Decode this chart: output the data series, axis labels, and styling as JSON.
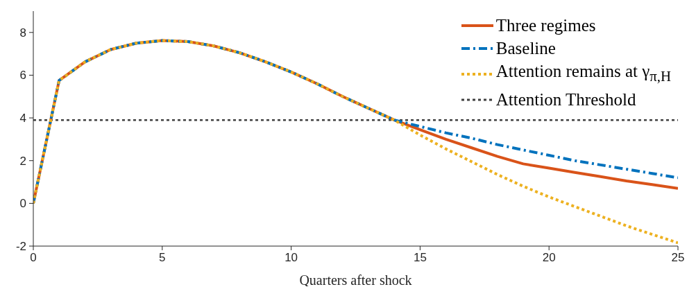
{
  "chart_data": {
    "type": "line",
    "xlabel": "Quarters after shock",
    "x": [
      0,
      1,
      2,
      3,
      4,
      5,
      6,
      7,
      8,
      9,
      10,
      11,
      12,
      13,
      14,
      15,
      16,
      17,
      18,
      19,
      20,
      21,
      22,
      23,
      24,
      25
    ],
    "series": [
      {
        "name": "Three regimes",
        "color": "#d95319",
        "line_style": "solid",
        "values": [
          0,
          5.75,
          6.62,
          7.2,
          7.5,
          7.62,
          7.57,
          7.37,
          7.05,
          6.63,
          6.15,
          5.6,
          5.0,
          4.45,
          3.9,
          3.45,
          3.0,
          2.6,
          2.2,
          1.85,
          1.65,
          1.45,
          1.25,
          1.05,
          0.88,
          0.7
        ]
      },
      {
        "name": "Baseline",
        "color": "#0072bd",
        "line_style": "dashed",
        "values": [
          0,
          5.75,
          6.62,
          7.2,
          7.5,
          7.62,
          7.57,
          7.37,
          7.05,
          6.63,
          6.15,
          5.6,
          5.0,
          4.45,
          3.9,
          3.6,
          3.3,
          3.05,
          2.75,
          2.5,
          2.25,
          2.0,
          1.8,
          1.6,
          1.4,
          1.2
        ]
      },
      {
        "name": "Attention remains at γ$_{π,H}$",
        "color": "#edb120",
        "line_style": "dotted",
        "values": [
          0,
          5.75,
          6.62,
          7.2,
          7.5,
          7.62,
          7.57,
          7.37,
          7.05,
          6.63,
          6.15,
          5.6,
          5.0,
          4.45,
          3.9,
          3.2,
          2.55,
          1.95,
          1.35,
          0.8,
          0.3,
          -0.15,
          -0.6,
          -1.05,
          -1.45,
          -1.85
        ]
      }
    ],
    "ref_lines": [
      {
        "axis": "y",
        "value": 3.9,
        "label": "Attention Threshold",
        "color": "#404040",
        "line_style": "dotted"
      }
    ],
    "xlim": [
      0,
      25
    ],
    "xticks": [
      0,
      5,
      10,
      15,
      20,
      25
    ],
    "ylim": [
      -2,
      9
    ],
    "yticks": [
      -2,
      0,
      2,
      4,
      6,
      8
    ],
    "legend": "top right",
    "marker": "none"
  }
}
